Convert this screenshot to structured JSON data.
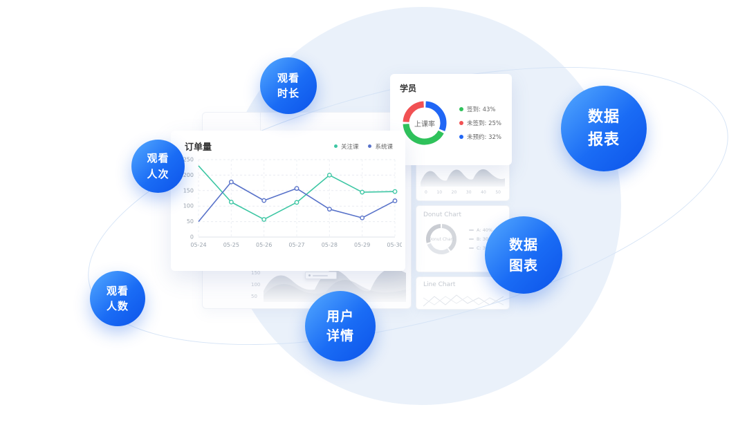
{
  "badges": [
    {
      "id": "watch-duration",
      "line1": "观看",
      "line2": "时长"
    },
    {
      "id": "watch-views",
      "line1": "观看",
      "line2": "人次"
    },
    {
      "id": "watch-users",
      "line1": "观看",
      "line2": "人数"
    },
    {
      "id": "user-details",
      "line1": "用户",
      "line2": "详情"
    },
    {
      "id": "data-charts",
      "line1": "数据",
      "line2": "图表"
    },
    {
      "id": "data-reports",
      "line1": "数据",
      "line2": "报表"
    }
  ],
  "colors": {
    "badge_blue": "#1a6cf5",
    "bg_circle": "#eaf1fa",
    "orbit_line": "#d6e4f6",
    "series_green": "#3cc6a3",
    "series_blue": "#5872c9",
    "donut_green": "#2fc25b",
    "donut_red": "#f15153",
    "donut_blue": "#2066f5"
  },
  "students_card": {
    "title": "学员",
    "center_label": "上课率",
    "legend": [
      "签到: 43%",
      "未签到: 25%",
      "未预约: 32%"
    ]
  },
  "bg_cards": {
    "mini_area": {
      "xticks": [
        "0",
        "10",
        "20",
        "30",
        "40",
        "50"
      ]
    },
    "donut": {
      "title": "Donut Chart",
      "center_label": "Donut Chart",
      "legend": [
        "A: 40%",
        "B: 30%",
        "C: 30%"
      ]
    },
    "line": {
      "title": "Line Chart"
    },
    "bottom_area": {
      "yticks": [
        "150",
        "100",
        "50"
      ]
    }
  },
  "chart_data": [
    {
      "id": "orders",
      "type": "line",
      "title": "订单量",
      "x": [
        "05-24",
        "05-25",
        "05-26",
        "05-27",
        "05-28",
        "05-29",
        "05-30"
      ],
      "ylim": [
        0,
        250
      ],
      "yticks": [
        0,
        50,
        100,
        150,
        200,
        250
      ],
      "grid": "dashed",
      "legend_position": "top-right",
      "series": [
        {
          "name": "关注课",
          "color": "#3cc6a3",
          "values": [
            230,
            113,
            57,
            112,
            200,
            145,
            147
          ]
        },
        {
          "name": "系统课",
          "color": "#5872c9",
          "values": [
            50,
            178,
            118,
            157,
            90,
            62,
            117
          ]
        }
      ]
    },
    {
      "id": "students",
      "type": "donut",
      "title": "学员",
      "center_label": "上课率",
      "slices": [
        {
          "name": "未预约",
          "value": 32,
          "color": "#2066f5"
        },
        {
          "name": "签到",
          "value": 43,
          "color": "#2fc25b"
        },
        {
          "name": "未签到",
          "value": 25,
          "color": "#f15153"
        }
      ]
    },
    {
      "id": "background-donut",
      "type": "donut",
      "title": "Donut Chart",
      "center_label": "Donut Chart",
      "slices": [
        {
          "name": "A",
          "value": 40,
          "color": "#d4d7dc"
        },
        {
          "name": "B",
          "value": 30,
          "color": "#e2e5ea"
        },
        {
          "name": "C",
          "value": 30,
          "color": "#c9ccd2"
        }
      ]
    }
  ]
}
